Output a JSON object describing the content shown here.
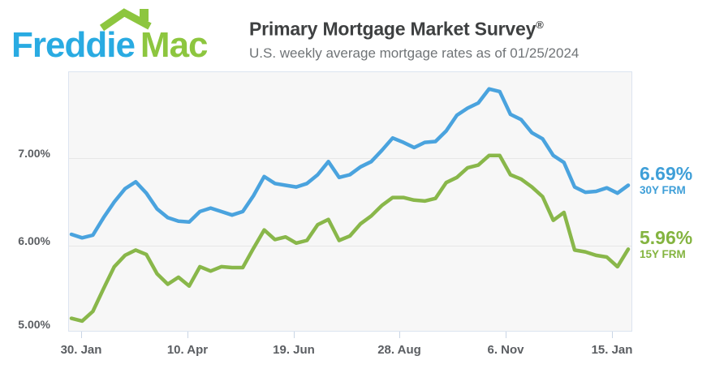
{
  "logo": {
    "text_primary": "Freddie",
    "text_secondary": "Mac",
    "color_primary": "#29abe2",
    "color_secondary": "#8dc63f",
    "icon": "house-roof-icon"
  },
  "header": {
    "title": "Primary Mortgage Market Survey",
    "registered_mark": "®",
    "subtitle": "U.S. weekly average mortgage rates as of 01/25/2024"
  },
  "chart_data": {
    "type": "line",
    "title": "U.S. weekly average mortgage rates as of 01/25/2024",
    "x_unit": "week",
    "x_tick_labels": [
      "30. Jan",
      "10. Apr",
      "19. Jun",
      "28. Aug",
      "6. Nov",
      "15. Jan"
    ],
    "y_tick_labels": [
      "7.00%",
      "6.00%",
      "5.00%"
    ],
    "ylim": [
      5.0,
      8.0
    ],
    "y_gridlines": [
      7.0,
      6.0
    ],
    "grid": "horizontal only",
    "legend_position": "inline labels at right edge of lines",
    "plot_bg": "#f7f7f7",
    "border_color": "#dce4f0",
    "grid_color": "#e7e7e7",
    "series": [
      {
        "name": "30Y FRM",
        "end_value_label": "6.69%",
        "color": "#4aa3de",
        "values": [
          6.13,
          6.09,
          6.12,
          6.32,
          6.5,
          6.65,
          6.73,
          6.6,
          6.42,
          6.32,
          6.28,
          6.27,
          6.39,
          6.43,
          6.39,
          6.35,
          6.39,
          6.57,
          6.79,
          6.71,
          6.69,
          6.67,
          6.71,
          6.81,
          6.96,
          6.78,
          6.81,
          6.9,
          6.96,
          7.09,
          7.23,
          7.18,
          7.12,
          7.18,
          7.19,
          7.31,
          7.49,
          7.57,
          7.63,
          7.79,
          7.76,
          7.5,
          7.44,
          7.29,
          7.22,
          7.03,
          6.95,
          6.67,
          6.61,
          6.62,
          6.66,
          6.6,
          6.69
        ]
      },
      {
        "name": "15Y FRM",
        "end_value_label": "5.96%",
        "color": "#89b74a",
        "values": [
          5.17,
          5.14,
          5.25,
          5.51,
          5.76,
          5.89,
          5.95,
          5.9,
          5.68,
          5.56,
          5.64,
          5.54,
          5.76,
          5.71,
          5.76,
          5.75,
          5.75,
          5.97,
          6.18,
          6.07,
          6.1,
          6.03,
          6.06,
          6.24,
          6.3,
          6.06,
          6.11,
          6.25,
          6.34,
          6.46,
          6.55,
          6.55,
          6.52,
          6.51,
          6.54,
          6.72,
          6.78,
          6.89,
          6.92,
          7.03,
          7.03,
          6.81,
          6.76,
          6.67,
          6.56,
          6.29,
          6.38,
          5.95,
          5.93,
          5.89,
          5.87,
          5.76,
          5.96
        ]
      }
    ]
  }
}
